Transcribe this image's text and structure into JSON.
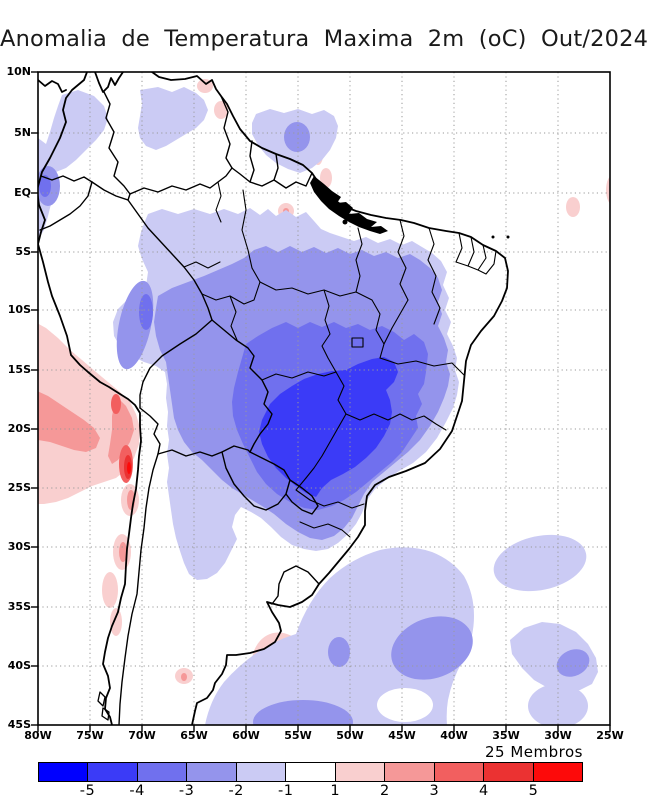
{
  "title": "Anomalia de Temperatura Maxima 2m (oC) Out/2024",
  "annotation": "25 Membros",
  "axes": {
    "lat_labels": [
      "10N",
      "5N",
      "EQ",
      "5S",
      "10S",
      "15S",
      "20S",
      "25S",
      "30S",
      "35S",
      "40S",
      "45S"
    ],
    "lon_labels": [
      "80W",
      "75W",
      "70W",
      "65W",
      "60W",
      "55W",
      "50W",
      "45W",
      "40W",
      "35W",
      "30W",
      "25W"
    ]
  },
  "colorbar": {
    "tick_labels": [
      "-5",
      "-4",
      "-3",
      "-2",
      "-1",
      "1",
      "2",
      "3",
      "4",
      "5"
    ],
    "colors": [
      "#0000FF",
      "#3B3BF7",
      "#7070EE",
      "#9494EC",
      "#CBCBF4",
      "#FFFFFF",
      "#F9CFCF",
      "#F59898",
      "#F25F5F",
      "#EB3232",
      "#FD0A0A"
    ],
    "units": "oC"
  },
  "chart_data": {
    "type": "heatmap",
    "subtype": "filled-contour-map",
    "title": "Anomalia de Temperatura Maxima 2m (oC) Out/2024",
    "annotation": "25 Membros",
    "units": "oC",
    "lon_range": [
      "80W",
      "25W"
    ],
    "lat_range": [
      "45S",
      "10N"
    ],
    "lon_ticks": [
      "80W",
      "75W",
      "70W",
      "65W",
      "60W",
      "55W",
      "50W",
      "45W",
      "40W",
      "35W",
      "30W",
      "25W"
    ],
    "lat_ticks": [
      "10N",
      "5N",
      "EQ",
      "5S",
      "10S",
      "15S",
      "20S",
      "25S",
      "30S",
      "35S",
      "40S",
      "45S"
    ],
    "grid": "dotted",
    "legend_position": "bottom-horizontal-colorbar",
    "colorbar_levels": [
      -5,
      -4,
      -3,
      -2,
      -1,
      1,
      2,
      3,
      4,
      5
    ],
    "colorbar_colors": [
      "#0000FF",
      "#3B3BF7",
      "#7070EE",
      "#9494EC",
      "#CBCBF4",
      "#FFFFFF",
      "#F9CFCF",
      "#F59898",
      "#F25F5F",
      "#EB3232",
      "#FD0A0A"
    ],
    "features": [
      {
        "region": "Sao Paulo / Parana / Mato Grosso do Sul (SE Brazil core)",
        "anomaly_c": "-4 to -5"
      },
      {
        "region": "Central Brazil (Goias, Minas Gerais, Mato Grosso)",
        "anomaly_c": "-3 to -4"
      },
      {
        "region": "Amazon basin and most of Brazil interior",
        "anomaly_c": "-1 to -3"
      },
      {
        "region": "Northeast Brazil interior (Bahia, Piaui)",
        "anomaly_c": "-2 to -3"
      },
      {
        "region": "Paraguay and NE Argentina",
        "anomaly_c": "-1 to -3"
      },
      {
        "region": "Peru interior / western Amazon",
        "anomaly_c": "-2 to -3"
      },
      {
        "region": "Venezuela, Guianas, Amapa patches",
        "anomaly_c": "-1 to -2"
      },
      {
        "region": "Coastal Ecuador near Equator",
        "anomaly_c": "-2 to -3"
      },
      {
        "region": "North Chile / South Peru coast and Andes",
        "anomaly_c": "+1 to +5"
      },
      {
        "region": "SE Pacific off Peru coast",
        "anomaly_c": "+1 to +2"
      },
      {
        "region": "Central Argentina Atlantic coast (~40S)",
        "anomaly_c": "+1 to +2"
      },
      {
        "region": "South Atlantic patches (30S-45S)",
        "anomaly_c": "-1 to -2"
      },
      {
        "region": "NE tip of Brazil coast and adjacent ocean",
        "anomaly_c": "0 (white)"
      }
    ]
  }
}
